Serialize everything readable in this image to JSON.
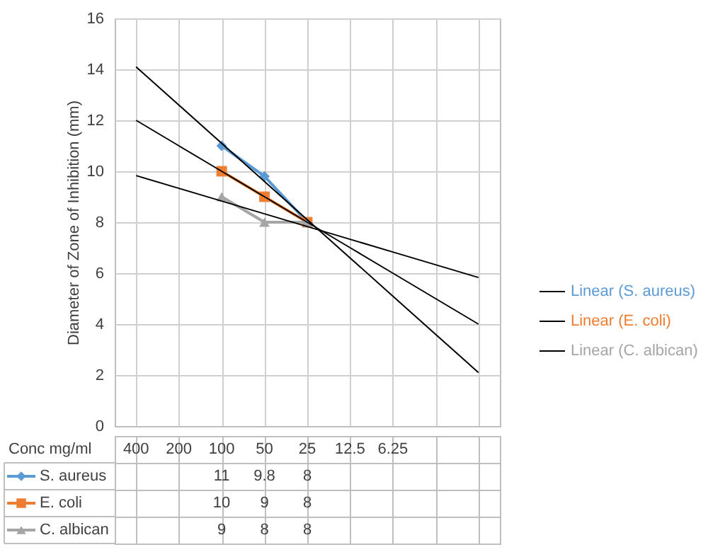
{
  "chart_data": {
    "type": "line",
    "ylabel": "Diameter of Zone of Inhibition (mm)",
    "xlabel": "Conc mg/ml",
    "categories": [
      "400",
      "200",
      "100",
      "50",
      "25",
      "12.5",
      "6.25",
      null,
      null
    ],
    "ylim": [
      0,
      16
    ],
    "yticks": [
      0,
      2,
      4,
      6,
      8,
      10,
      12,
      14,
      16
    ],
    "grid": true,
    "legend": "right",
    "series": [
      {
        "name": "S. aureus",
        "color": "#5b9bd5",
        "marker": "diamond",
        "values": [
          null,
          null,
          11,
          9.8,
          8,
          null,
          null,
          null,
          null
        ],
        "value_labels": [
          null,
          null,
          "11",
          "9.8",
          "8",
          null,
          null,
          null,
          null
        ]
      },
      {
        "name": "E. coli",
        "color": "#ed7d31",
        "marker": "square",
        "values": [
          null,
          null,
          10,
          9,
          8,
          null,
          null,
          null,
          null
        ],
        "value_labels": [
          null,
          null,
          "10",
          "9",
          "8",
          null,
          null,
          null,
          null
        ]
      },
      {
        "name": "C. albican",
        "color": "#a5a5a5",
        "marker": "triangle",
        "values": [
          null,
          null,
          9,
          8,
          8,
          null,
          null,
          null,
          null
        ],
        "value_labels": [
          null,
          null,
          "9",
          "8",
          "8",
          null,
          null,
          null,
          null
        ]
      },
      {
        "name": "Linear (S. aureus)",
        "color": "#000000",
        "values": [
          14.1,
          12.6,
          11.1,
          9.6,
          8.1,
          6.6,
          5.1,
          3.6,
          2.1
        ]
      },
      {
        "name": "Linear (E. coli)",
        "color": "#000000",
        "values": [
          12,
          11,
          10,
          9,
          8,
          7,
          6,
          5,
          4
        ]
      },
      {
        "name": "Linear (C. albican)",
        "color": "#000000",
        "values": [
          9.83,
          9.33,
          8.83,
          8.33,
          7.83,
          7.33,
          6.83,
          6.33,
          5.83
        ]
      }
    ]
  }
}
